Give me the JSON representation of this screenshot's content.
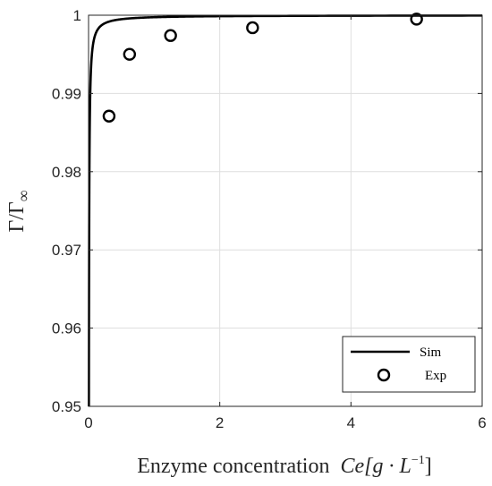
{
  "chart_data": {
    "type": "line",
    "xlabel": "Enzyme concentration",
    "xlabel_math": {
      "base": "Ce[g · L",
      "sup": "−1",
      "close": "]"
    },
    "ylabel": {
      "main": "Γ/Γ",
      "sub": "∞"
    },
    "xlim": [
      0,
      6
    ],
    "ylim": [
      0.95,
      1.0
    ],
    "xticks": [
      0,
      2,
      4,
      6
    ],
    "xtick_labels": [
      "0",
      "2",
      "4",
      "6"
    ],
    "yticks": [
      0.95,
      0.96,
      0.97,
      0.98,
      0.99,
      1.0
    ],
    "ytick_labels": [
      "0.95",
      "0.96",
      "0.97",
      "0.98",
      "0.99",
      "1"
    ],
    "grid": true,
    "legend_position": "bottom-right",
    "series": [
      {
        "name": "Sim",
        "style": "line",
        "color": "#000000",
        "model": "Gamma/Gamma_inf = 1 - 0.000255/Ce"
      },
      {
        "name": "Exp",
        "style": "marker-circle",
        "color": "#000000",
        "x": [
          0.3125,
          0.625,
          1.25,
          2.5,
          5.0
        ],
        "y": [
          0.9871,
          0.995,
          0.9974,
          0.9984,
          0.9995
        ]
      }
    ]
  }
}
